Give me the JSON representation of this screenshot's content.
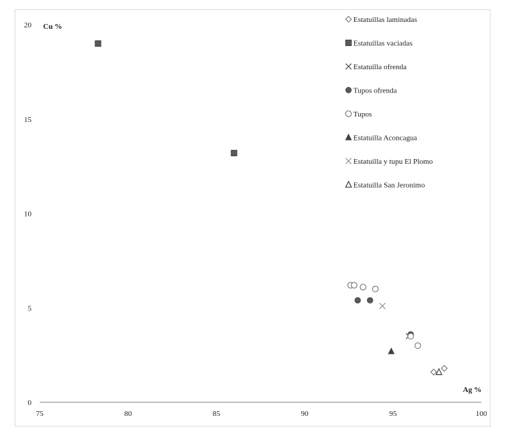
{
  "chart_data": {
    "type": "scatter",
    "title": "",
    "xlabel": "Ag %",
    "ylabel": "Cu %",
    "xlim": [
      75,
      100
    ],
    "ylim": [
      0,
      20
    ],
    "xticks": [
      "75",
      "80",
      "85",
      "90",
      "95",
      "100"
    ],
    "yticks": [
      "0",
      "5",
      "10",
      "15",
      "20"
    ],
    "grid": false,
    "legend_position": "top-right",
    "series": [
      {
        "name": "Estatuillas laminadas",
        "marker": "open-diamond",
        "color": "#666666",
        "points": [
          [
            97.3,
            1.6
          ],
          [
            97.9,
            1.8
          ]
        ]
      },
      {
        "name": "Estatuillas vaciadas",
        "marker": "filled-square",
        "color": "#595959",
        "points": [
          [
            78.3,
            19.0
          ],
          [
            86.0,
            13.2
          ]
        ]
      },
      {
        "name": "Estatuilla ofrenda",
        "marker": "x",
        "color": "#404040",
        "points": [
          [
            95.9,
            3.5
          ]
        ]
      },
      {
        "name": "Tupos ofrenda",
        "marker": "filled-circle",
        "color": "#595959",
        "points": [
          [
            93.0,
            5.4
          ],
          [
            93.7,
            5.4
          ],
          [
            96.0,
            3.6
          ]
        ]
      },
      {
        "name": "Tupos",
        "marker": "open-circle",
        "color": "#666666",
        "points": [
          [
            92.6,
            6.2
          ],
          [
            92.8,
            6.2
          ],
          [
            93.3,
            6.1
          ],
          [
            94.0,
            6.0
          ],
          [
            96.0,
            3.5
          ],
          [
            96.4,
            3.0
          ]
        ]
      },
      {
        "name": "Estatuilla Aconcagua",
        "marker": "filled-triangle",
        "color": "#404040",
        "points": [
          [
            94.9,
            2.7
          ]
        ]
      },
      {
        "name": "Estatuilla y tupu El Plomo",
        "marker": "x",
        "color": "#8c8c8c",
        "points": [
          [
            94.4,
            5.1
          ]
        ]
      },
      {
        "name": "Estatuilla San Jeronimo",
        "marker": "open-triangle",
        "color": "#404040",
        "points": [
          [
            97.6,
            1.6
          ]
        ]
      }
    ]
  }
}
